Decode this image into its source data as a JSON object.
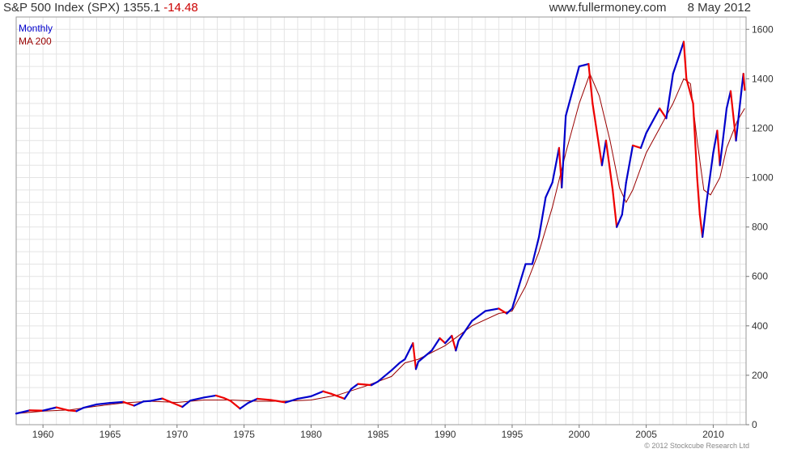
{
  "header": {
    "index_label": "S&P 500 Index (SPX)",
    "last": "1355.1",
    "change": "-14.48",
    "source": "www.fullermoney.com",
    "date": "8 May 2012"
  },
  "copyright": "© 2012 Stockcube Research Ltd",
  "colors": {
    "price": "#0000cc",
    "price_down": "#ee0000",
    "ma": "#990000",
    "grid": "#e4e4e4"
  },
  "chart_data": {
    "type": "line",
    "title": "S&P 500 Index (SPX)",
    "legend": [
      "Monthly",
      "MA 200"
    ],
    "legend_position": "top-left",
    "xlim": [
      1958.0,
      2012.45
    ],
    "ylim": [
      0,
      1650
    ],
    "x_ticks": [
      1960,
      1965,
      1970,
      1975,
      1980,
      1985,
      1990,
      1995,
      2000,
      2005,
      2010
    ],
    "y_ticks": [
      0,
      200,
      400,
      600,
      800,
      1000,
      1200,
      1400,
      1600
    ],
    "y_axis_side": "right",
    "grid": true,
    "series": [
      {
        "name": "Monthly",
        "x": [
          1958.0,
          1959.0,
          1960.0,
          1961.0,
          1961.9,
          1962.5,
          1963.0,
          1964.0,
          1965.0,
          1966.0,
          1966.8,
          1967.5,
          1968.0,
          1968.9,
          1969.5,
          1970.4,
          1971.0,
          1972.0,
          1972.9,
          1973.5,
          1974.0,
          1974.7,
          1975.3,
          1976.0,
          1977.0,
          1978.1,
          1979.0,
          1980.0,
          1980.9,
          1981.5,
          1982.5,
          1983.0,
          1983.5,
          1984.5,
          1985.0,
          1986.0,
          1986.6,
          1987.0,
          1987.6,
          1987.82,
          1988.0,
          1989.0,
          1989.6,
          1990.0,
          1990.5,
          1990.8,
          1991.0,
          1992.0,
          1993.0,
          1994.0,
          1994.6,
          1995.0,
          1995.5,
          1996.0,
          1996.5,
          1997.0,
          1997.5,
          1998.0,
          1998.5,
          1998.7,
          1999.0,
          1999.5,
          2000.0,
          2000.7,
          2001.0,
          2001.7,
          2002.0,
          2002.5,
          2002.8,
          2003.2,
          2003.5,
          2004.0,
          2004.6,
          2005.0,
          2006.0,
          2006.5,
          2007.0,
          2007.5,
          2007.8,
          2008.0,
          2008.5,
          2008.8,
          2009.0,
          2009.2,
          2009.5,
          2010.0,
          2010.3,
          2010.5,
          2011.0,
          2011.3,
          2011.7,
          2012.0,
          2012.25,
          2012.35
        ],
        "y": [
          45,
          58,
          57,
          70,
          58,
          55,
          68,
          82,
          88,
          92,
          77,
          94,
          96,
          106,
          92,
          72,
          98,
          110,
          118,
          108,
          96,
          65,
          88,
          105,
          100,
          90,
          105,
          115,
          135,
          125,
          105,
          145,
          165,
          160,
          175,
          220,
          250,
          265,
          330,
          225,
          255,
          300,
          350,
          330,
          360,
          300,
          340,
          420,
          460,
          470,
          450,
          470,
          560,
          650,
          650,
          760,
          920,
          980,
          1120,
          960,
          1250,
          1350,
          1450,
          1460,
          1300,
          1050,
          1150,
          950,
          800,
          850,
          980,
          1130,
          1120,
          1180,
          1280,
          1240,
          1420,
          1500,
          1550,
          1400,
          1300,
          1000,
          850,
          760,
          900,
          1100,
          1190,
          1050,
          1280,
          1350,
          1150,
          1300,
          1420,
          1355
        ]
      },
      {
        "name": "MA 200",
        "x": [
          1958.0,
          1960.0,
          1962.0,
          1964.0,
          1966.0,
          1968.0,
          1970.0,
          1972.0,
          1974.0,
          1976.0,
          1978.0,
          1980.0,
          1982.0,
          1984.0,
          1986.0,
          1987.0,
          1988.0,
          1990.0,
          1992.0,
          1994.0,
          1995.0,
          1996.0,
          1997.0,
          1998.0,
          1999.0,
          2000.0,
          2000.8,
          2001.5,
          2002.3,
          2003.0,
          2003.5,
          2004.0,
          2005.0,
          2006.0,
          2007.0,
          2007.8,
          2008.3,
          2008.8,
          2009.3,
          2009.8,
          2010.5,
          2011.0,
          2011.8,
          2012.35
        ],
        "y": [
          45,
          55,
          60,
          75,
          88,
          95,
          90,
          100,
          100,
          95,
          95,
          100,
          120,
          155,
          195,
          250,
          265,
          320,
          400,
          450,
          460,
          560,
          700,
          880,
          1100,
          1300,
          1420,
          1330,
          1150,
          960,
          900,
          950,
          1100,
          1200,
          1300,
          1400,
          1380,
          1150,
          950,
          930,
          1000,
          1120,
          1230,
          1280
        ]
      }
    ]
  }
}
